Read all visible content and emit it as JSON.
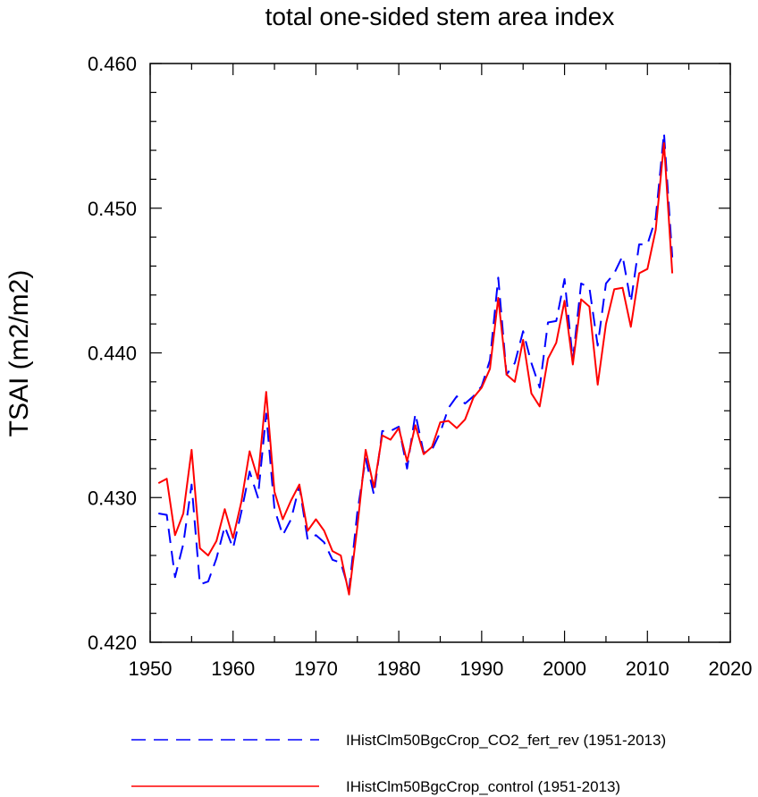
{
  "chart_data": {
    "type": "line",
    "title": "total one-sided stem area index",
    "xlabel": "",
    "ylabel": "TSAI  (m2/m2)",
    "xlim": [
      1950,
      2020
    ],
    "ylim": [
      0.42,
      0.46
    ],
    "xticks": [
      1950,
      1960,
      1970,
      1980,
      1990,
      2000,
      2010,
      2020
    ],
    "xtick_labels": [
      "1950",
      "1960",
      "1970",
      "1980",
      "1990",
      "2000",
      "2010",
      "2020"
    ],
    "yticks": [
      0.42,
      0.43,
      0.44,
      0.45,
      0.46
    ],
    "ytick_labels": [
      "0.420",
      "0.430",
      "0.440",
      "0.450",
      "0.460"
    ],
    "x": [
      1951,
      1952,
      1953,
      1954,
      1955,
      1956,
      1957,
      1958,
      1959,
      1960,
      1961,
      1962,
      1963,
      1964,
      1965,
      1966,
      1967,
      1968,
      1969,
      1970,
      1971,
      1972,
      1973,
      1974,
      1975,
      1976,
      1977,
      1978,
      1979,
      1980,
      1981,
      1982,
      1983,
      1984,
      1985,
      1986,
      1987,
      1988,
      1989,
      1990,
      1991,
      1992,
      1993,
      1994,
      1995,
      1996,
      1997,
      1998,
      1999,
      2000,
      2001,
      2002,
      2003,
      2004,
      2005,
      2006,
      2007,
      2008,
      2009,
      2010,
      2011,
      2012,
      2013
    ],
    "series": [
      {
        "name": "IHistClm50BgcCrop_CO2_fert_rev (1951-2013)",
        "color": "#0000ff",
        "dash": "dashed",
        "values": [
          0.4289,
          0.4288,
          0.4245,
          0.4268,
          0.4309,
          0.424,
          0.4242,
          0.4258,
          0.428,
          0.4265,
          0.429,
          0.4318,
          0.43,
          0.4358,
          0.4292,
          0.4274,
          0.4285,
          0.4308,
          0.4271,
          0.4274,
          0.4269,
          0.4257,
          0.4255,
          0.4236,
          0.429,
          0.4327,
          0.4302,
          0.4346,
          0.4346,
          0.4349,
          0.432,
          0.4358,
          0.4331,
          0.4333,
          0.4345,
          0.4362,
          0.437,
          0.4365,
          0.437,
          0.4377,
          0.4395,
          0.4452,
          0.4385,
          0.4393,
          0.4415,
          0.4393,
          0.4376,
          0.4421,
          0.4422,
          0.4451,
          0.4395,
          0.4448,
          0.4445,
          0.4405,
          0.4448,
          0.4455,
          0.4467,
          0.4435,
          0.4475,
          0.4475,
          0.4493,
          0.4552,
          0.4466
        ]
      },
      {
        "name": "IHistClm50BgcCrop_control (1951-2013)",
        "color": "#ff0000",
        "dash": "solid",
        "values": [
          0.431,
          0.4313,
          0.4274,
          0.4289,
          0.4333,
          0.4265,
          0.426,
          0.427,
          0.4292,
          0.4272,
          0.4297,
          0.4332,
          0.4313,
          0.4373,
          0.4304,
          0.4285,
          0.4298,
          0.4309,
          0.4277,
          0.4285,
          0.4277,
          0.4263,
          0.426,
          0.4233,
          0.428,
          0.4333,
          0.4307,
          0.4343,
          0.434,
          0.4348,
          0.4325,
          0.435,
          0.433,
          0.4335,
          0.4352,
          0.4353,
          0.4348,
          0.4354,
          0.4369,
          0.4376,
          0.4389,
          0.4438,
          0.4385,
          0.438,
          0.4409,
          0.4372,
          0.4363,
          0.4396,
          0.4407,
          0.4436,
          0.4392,
          0.4437,
          0.4432,
          0.4378,
          0.442,
          0.4444,
          0.4445,
          0.4418,
          0.4455,
          0.4458,
          0.4485,
          0.4545,
          0.4455
        ]
      }
    ],
    "legend_position": "bottom"
  }
}
